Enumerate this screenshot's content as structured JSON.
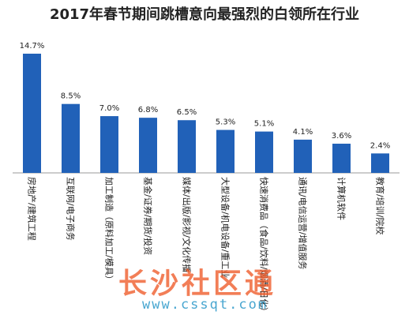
{
  "title": "2017年春节期间跳槽意向最强烈的白领所在行业",
  "chart_data": {
    "type": "bar",
    "title": "2017年春节期间跳槽意向最强烈的白领所在行业",
    "categories": [
      "房地产/建筑工程",
      "互联网/电子商务",
      "加工制造（原料加工/模具）",
      "基金/证券/期货/投资",
      "媒体/出版/影视/文化传播",
      "大型设备/机电设备/重工业",
      "快速消费品（食品/饮料/烟酒/日化）",
      "通讯/电信运营/增值服务",
      "计算机软件",
      "教育/培训/院校"
    ],
    "value_labels": [
      "14.7%",
      "8.5%",
      "7.0%",
      "6.8%",
      "6.5%",
      "5.3%",
      "5.1%",
      "4.1%",
      "3.6%",
      "2.4%"
    ],
    "values": [
      14.7,
      8.5,
      7.0,
      6.8,
      6.5,
      5.3,
      5.1,
      4.1,
      3.6,
      2.4
    ],
    "unit": "%",
    "ylim": [
      0,
      14.7
    ],
    "grid": false,
    "bar_color": "#2161b8"
  },
  "watermark": {
    "text": "长沙社区通",
    "url": "www.cssqt.com"
  }
}
